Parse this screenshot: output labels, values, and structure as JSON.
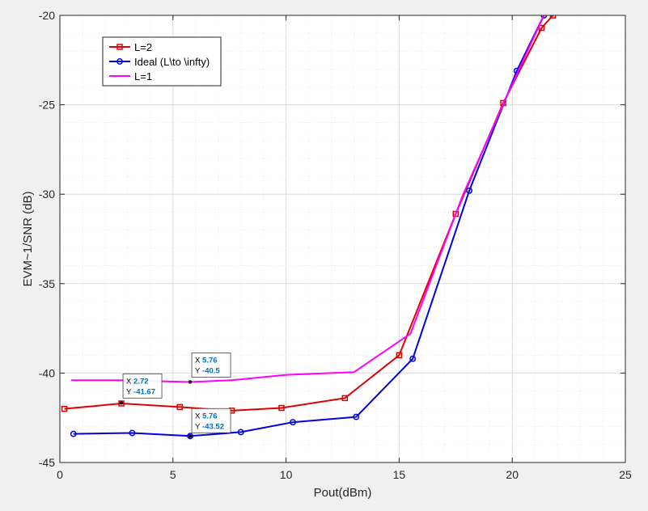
{
  "colors": {
    "figure_bg": "#f0f0f0",
    "axes_bg": "#ffffff",
    "grid": "#e6e6e6",
    "axis": "#262626",
    "datatip_value": "#0072BD"
  },
  "chart_data": {
    "type": "line",
    "title": "",
    "xlabel": "Pout(dBm)",
    "ylabel": "EVM~1/SNR (dB)",
    "xlim": [
      0,
      25
    ],
    "ylim": [
      -45,
      -20
    ],
    "xticks": [
      0,
      5,
      10,
      15,
      20,
      25
    ],
    "yticks": [
      -45,
      -40,
      -35,
      -30,
      -25,
      -20
    ],
    "xtick_labels": [
      "0",
      "5",
      "10",
      "15",
      "20",
      "25"
    ],
    "ytick_labels": [
      "-45",
      "-40",
      "-35",
      "-30",
      "-25",
      "-20"
    ],
    "grid": true,
    "minor_grid": true,
    "legend_position": "top-left",
    "series": [
      {
        "name": "L=2",
        "color": "#e00000",
        "marker": "square",
        "x": [
          0.2,
          2.72,
          5.3,
          7.6,
          9.8,
          12.6,
          15.0,
          17.5,
          19.6,
          21.3,
          21.8
        ],
        "y": [
          -42.0,
          -41.7,
          -41.9,
          -42.1,
          -41.95,
          -41.4,
          -39.0,
          -31.1,
          -24.9,
          -20.7,
          -20.0
        ]
      },
      {
        "name": "Ideal (L\\to \\infty)",
        "color": "#0000e0",
        "marker": "circle",
        "x": [
          0.6,
          3.2,
          5.76,
          8.0,
          10.3,
          13.1,
          15.6,
          18.1,
          20.2,
          21.4
        ],
        "y": [
          -43.4,
          -43.35,
          -43.52,
          -43.3,
          -42.75,
          -42.45,
          -39.2,
          -29.8,
          -23.1,
          -20.0
        ]
      },
      {
        "name": "L=1",
        "color": "#ff00ff",
        "marker": "none",
        "x": [
          0.5,
          2.7,
          5.76,
          7.6,
          10.0,
          13.0,
          15.5,
          17.8,
          19.8,
          21.4
        ],
        "y": [
          -40.4,
          -40.4,
          -40.5,
          -40.4,
          -40.1,
          -39.95,
          -37.8,
          -30.1,
          -24.4,
          -20.0
        ]
      }
    ],
    "datatips": [
      {
        "x_label": "X",
        "x_value": "2.72",
        "y_label": "Y",
        "y_value": "-41.67",
        "x": 2.72,
        "y": -41.67
      },
      {
        "x_label": "X",
        "x_value": "5.76",
        "y_label": "Y",
        "y_value": "-40.5",
        "x": 5.76,
        "y": -40.5
      },
      {
        "x_label": "X",
        "x_value": "5.76",
        "y_label": "Y",
        "y_value": "-43.52",
        "x": 5.76,
        "y": -43.52
      }
    ]
  }
}
